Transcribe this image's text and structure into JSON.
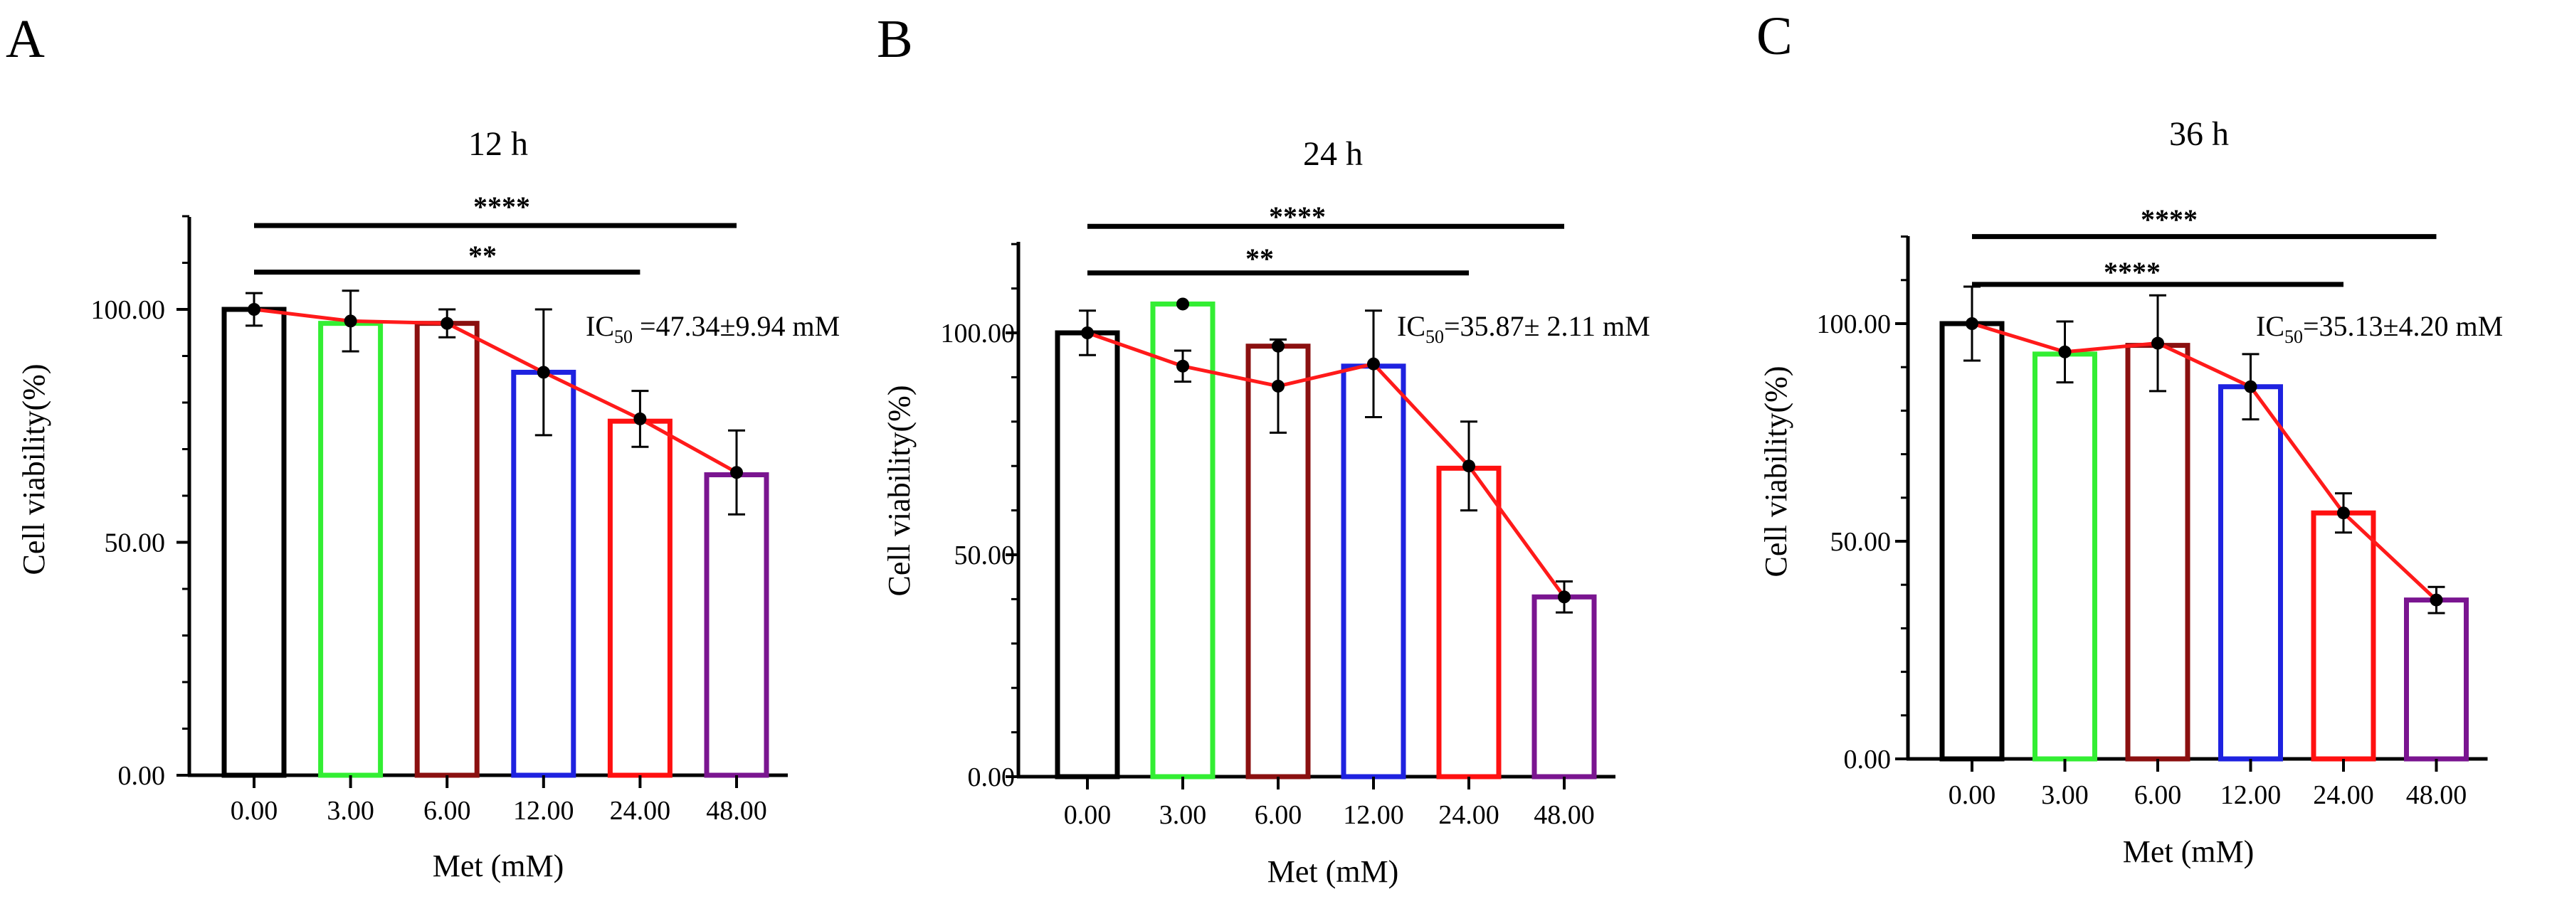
{
  "chart_data": [
    {
      "panel": "A",
      "type": "bar",
      "title": "12 h",
      "xlabel": "Met (mM)",
      "ylabel": "Cell viability(%)",
      "categories": [
        "0.00",
        "3.00",
        "6.00",
        "12.00",
        "24.00",
        "48.00"
      ],
      "values": [
        100,
        97,
        97,
        86.5,
        76,
        64.5
      ],
      "line_values": [
        100,
        97.5,
        97,
        86.5,
        76.5,
        65
      ],
      "errors": [
        3.5,
        6.5,
        3,
        13.5,
        6,
        9
      ],
      "extra_points": [],
      "bar_colors": [
        "#000000",
        "#33ee33",
        "#8b1010",
        "#1e22e0",
        "#ff1010",
        "#7a1590"
      ],
      "line_color": "#ff1a1a",
      "yticks": [
        0,
        50,
        100
      ],
      "ytick_labels": [
        "0.00",
        "50.00",
        "100.00"
      ],
      "ylim": [
        0,
        120
      ],
      "ic50": {
        "pre": "IC",
        "sub": "50",
        "post": " =47.34±9.94 mM"
      },
      "significance": [
        {
          "label": "****",
          "from": 0,
          "to": 5,
          "y": 118
        },
        {
          "label": "**",
          "from": 0,
          "to": 4,
          "y": 108
        }
      ]
    },
    {
      "panel": "B",
      "type": "bar",
      "title": "24 h",
      "xlabel": "Met (mM)",
      "ylabel": "Cell viability(%)",
      "categories": [
        "0.00",
        "3.00",
        "6.00",
        "12.00",
        "24.00",
        "48.00"
      ],
      "values": [
        100,
        106.5,
        97,
        92.5,
        69.5,
        40.5
      ],
      "line_values": [
        100,
        92.5,
        88,
        93,
        70,
        40.5
      ],
      "errors": [
        5,
        3.5,
        10.5,
        12,
        10,
        3.5
      ],
      "extra_points": [
        {
          "index": 1,
          "value": 106.5
        },
        {
          "index": 2,
          "value": 97
        }
      ],
      "bar_colors": [
        "#000000",
        "#33ee33",
        "#8b1010",
        "#1e22e0",
        "#ff1010",
        "#7a1590"
      ],
      "line_color": "#ff1a1a",
      "yticks": [
        0,
        50,
        100
      ],
      "ytick_labels": [
        "0.00",
        "50.00",
        "100.00"
      ],
      "ylim": [
        0,
        120
      ],
      "ic50": {
        "pre": "IC",
        "sub": "50",
        "post": "=35.87± 2.11 mM"
      },
      "significance": [
        {
          "label": "****",
          "from": 0,
          "to": 5,
          "y": 124
        },
        {
          "label": "**",
          "from": 0,
          "to": 4,
          "y": 113.5
        }
      ]
    },
    {
      "panel": "C",
      "type": "bar",
      "title": "36 h",
      "xlabel": "Met (mM)",
      "ylabel": "Cell viability(%)",
      "categories": [
        "0.00",
        "3.00",
        "6.00",
        "12.00",
        "24.00",
        "48.00"
      ],
      "values": [
        100,
        93,
        95,
        85.5,
        56.5,
        36.5
      ],
      "line_values": [
        100,
        93.5,
        95.5,
        85.5,
        56.5,
        36.5
      ],
      "errors": [
        8.5,
        7,
        11,
        7.5,
        4.5,
        3
      ],
      "extra_points": [],
      "bar_colors": [
        "#000000",
        "#33ee33",
        "#8b1010",
        "#1e22e0",
        "#ff1010",
        "#7a1590"
      ],
      "line_color": "#ff1a1a",
      "yticks": [
        0,
        50,
        100
      ],
      "ytick_labels": [
        "0.00",
        "50.00",
        "100.00"
      ],
      "ylim": [
        0,
        120
      ],
      "ic50": {
        "pre": "IC",
        "sub": "50",
        "post": "=35.13±4.20 mM"
      },
      "significance": [
        {
          "label": "****",
          "from": 0,
          "to": 5,
          "y": 120
        },
        {
          "label": "****",
          "from": 0,
          "to": 4,
          "y": 109
        }
      ]
    }
  ]
}
